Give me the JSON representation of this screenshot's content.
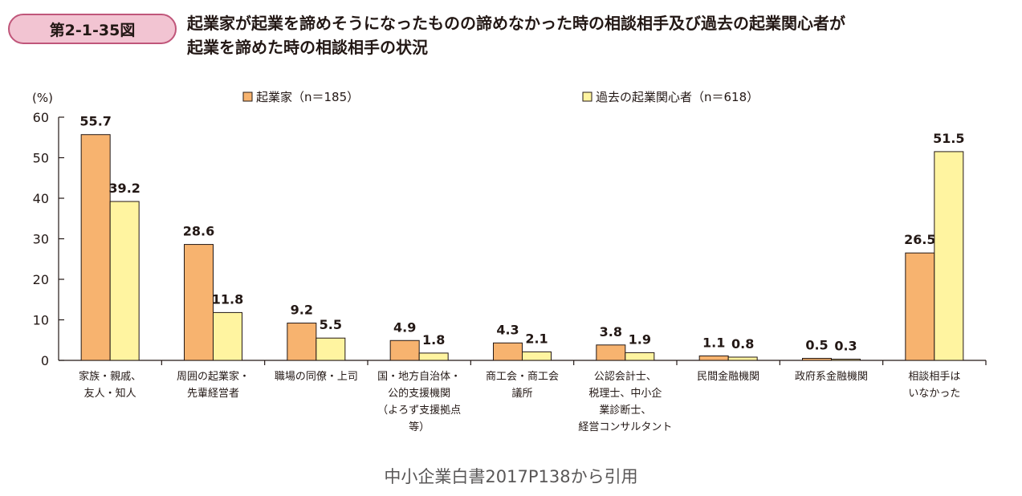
{
  "figure": {
    "number": "第2-1-35図",
    "title_lines": [
      "起業家が起業を諦めそうになったものの諦めなかった時の相談相手及び過去の起業関心者が",
      "起業を諦めた時の相談相手の状況"
    ]
  },
  "caption": "中小企業白書2017P138から引用",
  "colors": {
    "series1": "#f7b36f",
    "series2": "#fff4a0",
    "outline": "#231815",
    "badge_fill": "#f2c4d2",
    "badge_border": "#c0567a"
  },
  "chart_data": {
    "type": "bar",
    "title": "",
    "ylabel": "(%)",
    "xlabel": "",
    "ylim": [
      0,
      60
    ],
    "yticks": [
      0,
      10,
      20,
      30,
      40,
      50,
      60
    ],
    "grid": false,
    "legend_position": "top",
    "categories": [
      [
        "家族・親戚、",
        "友人・知人"
      ],
      [
        "周囲の起業家・",
        "先輩経営者"
      ],
      [
        "職場の同僚・上司"
      ],
      [
        "国・地方自治体・",
        "公的支援機関",
        "（よろず支援拠点",
        "等）"
      ],
      [
        "商工会・商工会",
        "議所"
      ],
      [
        "公認会計士、",
        "税理士、中小企",
        "業診断士、",
        "経営コンサルタント"
      ],
      [
        "民間金融機関"
      ],
      [
        "政府系金融機関"
      ],
      [
        "相談相手は",
        "いなかった"
      ]
    ],
    "series": [
      {
        "name": "起業家（n＝185）",
        "values": [
          55.7,
          28.6,
          9.2,
          4.9,
          4.3,
          3.8,
          1.1,
          0.5,
          26.5
        ]
      },
      {
        "name": "過去の起業関心者（n＝618）",
        "values": [
          39.2,
          11.8,
          5.5,
          1.8,
          2.1,
          1.9,
          0.8,
          0.3,
          51.5
        ]
      }
    ]
  }
}
